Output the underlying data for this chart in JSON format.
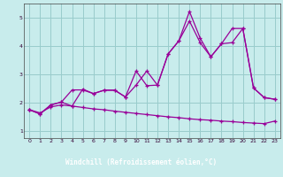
{
  "xlabel": "Windchill (Refroidissement éolien,°C)",
  "background_color": "#c8ecec",
  "xlabel_bg": "#660066",
  "line_color": "#990099",
  "grid_color": "#99cccc",
  "xlim": [
    -0.5,
    23.5
  ],
  "ylim": [
    0.75,
    5.5
  ],
  "xticks": [
    0,
    1,
    2,
    3,
    4,
    5,
    6,
    7,
    8,
    9,
    10,
    11,
    12,
    13,
    14,
    15,
    16,
    17,
    18,
    19,
    20,
    21,
    22,
    23
  ],
  "yticks": [
    1,
    2,
    3,
    4,
    5
  ],
  "line1_x": [
    0,
    1,
    2,
    3,
    4,
    5,
    6,
    7,
    8,
    9,
    10,
    11,
    12,
    13,
    14,
    15,
    16,
    17,
    18,
    19,
    20,
    21,
    22,
    23
  ],
  "line1_y": [
    1.75,
    1.6,
    1.92,
    2.02,
    1.88,
    2.48,
    2.32,
    2.44,
    2.44,
    2.2,
    3.12,
    2.6,
    2.62,
    3.72,
    4.18,
    5.22,
    4.28,
    3.62,
    4.08,
    4.12,
    4.62,
    2.52,
    2.18,
    2.12
  ],
  "line2_x": [
    0,
    1,
    2,
    3,
    4,
    5,
    6,
    7,
    8,
    9,
    10,
    11,
    12,
    13,
    14,
    15,
    16,
    17,
    18,
    19,
    20,
    21,
    22,
    23
  ],
  "line2_y": [
    1.75,
    1.6,
    1.92,
    2.02,
    2.45,
    2.45,
    2.32,
    2.44,
    2.44,
    2.2,
    2.62,
    3.12,
    2.62,
    3.72,
    4.18,
    4.88,
    4.12,
    3.62,
    4.08,
    4.62,
    4.62,
    2.52,
    2.18,
    2.12
  ],
  "line3_x": [
    0,
    1,
    2,
    3,
    4,
    5,
    6,
    7,
    8,
    9,
    10,
    11,
    12,
    13,
    14,
    15,
    16,
    17,
    18,
    19,
    20,
    21,
    22,
    23
  ],
  "line3_y": [
    1.75,
    1.64,
    1.85,
    1.92,
    1.88,
    1.83,
    1.78,
    1.75,
    1.7,
    1.66,
    1.62,
    1.58,
    1.54,
    1.5,
    1.47,
    1.43,
    1.4,
    1.38,
    1.35,
    1.33,
    1.3,
    1.28,
    1.26,
    1.35
  ]
}
